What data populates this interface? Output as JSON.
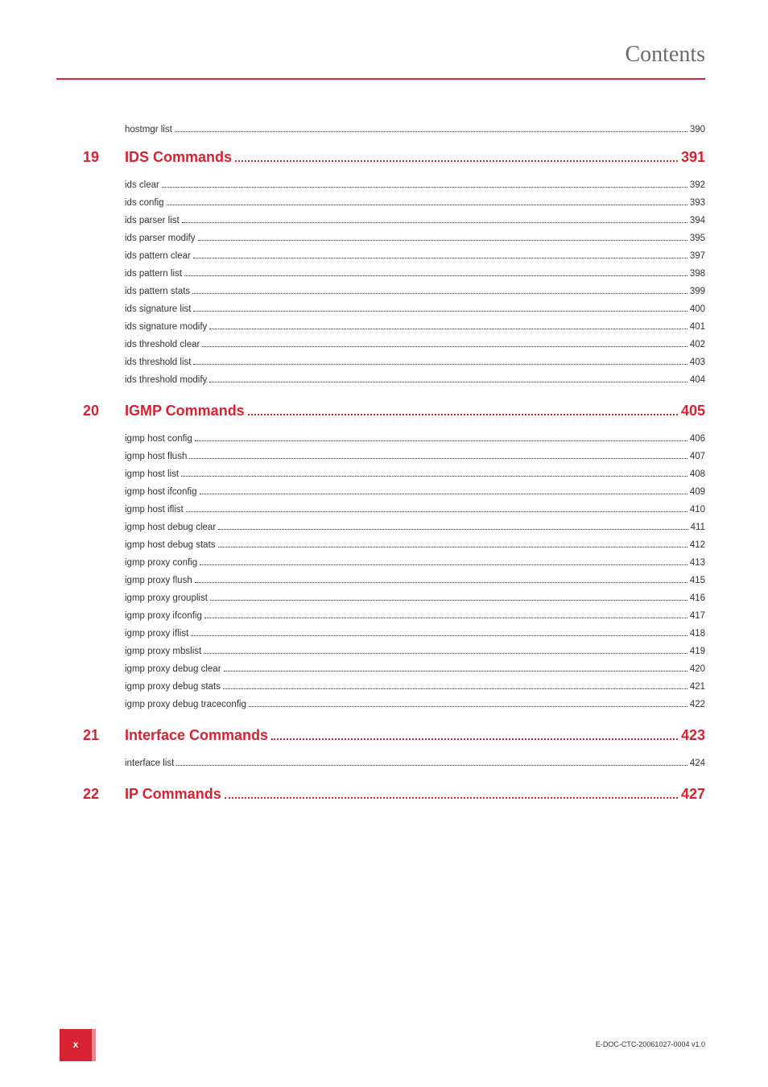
{
  "header": {
    "title": "Contents",
    "colors": {
      "accent": "#d92231",
      "text": "#333333",
      "header_text": "#6b6b6b",
      "background": "#ffffff"
    }
  },
  "orphan_entries": [
    {
      "label": "hostmgr list",
      "page": "390"
    }
  ],
  "chapters": [
    {
      "num": "19",
      "title": "IDS Commands",
      "page": "391",
      "entries": [
        {
          "label": "ids clear",
          "page": "392"
        },
        {
          "label": "ids config",
          "page": "393"
        },
        {
          "label": "ids parser list",
          "page": "394"
        },
        {
          "label": "ids parser modify",
          "page": "395"
        },
        {
          "label": "ids pattern clear",
          "page": "397"
        },
        {
          "label": "ids pattern list",
          "page": "398"
        },
        {
          "label": "ids pattern stats",
          "page": "399"
        },
        {
          "label": "ids signature list",
          "page": "400"
        },
        {
          "label": "ids signature modify",
          "page": "401"
        },
        {
          "label": "ids threshold clear",
          "page": "402"
        },
        {
          "label": "ids threshold list",
          "page": "403"
        },
        {
          "label": "ids threshold modify",
          "page": "404"
        }
      ]
    },
    {
      "num": "20",
      "title": "IGMP Commands",
      "page": "405",
      "entries": [
        {
          "label": "igmp host config",
          "page": "406"
        },
        {
          "label": "igmp host flush",
          "page": "407"
        },
        {
          "label": "igmp host list",
          "page": "408"
        },
        {
          "label": "igmp host ifconfig",
          "page": "409"
        },
        {
          "label": "igmp host iflist",
          "page": "410"
        },
        {
          "label": "igmp host debug clear",
          "page": "411"
        },
        {
          "label": "igmp host debug stats",
          "page": "412"
        },
        {
          "label": "igmp proxy config",
          "page": "413"
        },
        {
          "label": "igmp proxy flush",
          "page": "415"
        },
        {
          "label": "igmp proxy grouplist",
          "page": "416"
        },
        {
          "label": "igmp proxy ifconfig",
          "page": "417"
        },
        {
          "label": "igmp proxy iflist",
          "page": "418"
        },
        {
          "label": "igmp proxy mbslist",
          "page": "419"
        },
        {
          "label": "igmp proxy debug clear",
          "page": "420"
        },
        {
          "label": "igmp proxy debug stats",
          "page": "421"
        },
        {
          "label": "igmp proxy debug traceconfig",
          "page": "422"
        }
      ]
    },
    {
      "num": "21",
      "title": "Interface Commands",
      "page": "423",
      "entries": [
        {
          "label": "interface list",
          "page": "424"
        }
      ]
    },
    {
      "num": "22",
      "title": "IP Commands",
      "page": "427",
      "entries": []
    }
  ],
  "footer": {
    "page_number": "x",
    "doc_id": "E-DOC-CTC-20061027-0004 v1.0"
  }
}
